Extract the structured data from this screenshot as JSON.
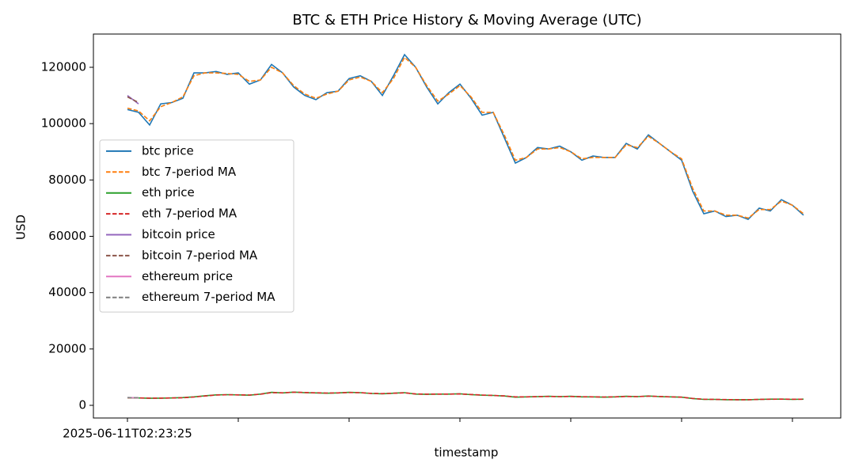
{
  "chart_data": {
    "type": "line",
    "title": "BTC & ETH Price History & Moving Average (UTC)",
    "x_label": "timestamp",
    "y_label": "USD",
    "categories": [
      "2025-06-11T02:23:25",
      null,
      null,
      null,
      null,
      null,
      null,
      null,
      null,
      null,
      null,
      null,
      null,
      null,
      null,
      null,
      null,
      null,
      null,
      null,
      null,
      null,
      null,
      null,
      null,
      null,
      null,
      null,
      null,
      null,
      null,
      null,
      null,
      null,
      null,
      null,
      null,
      null,
      null,
      null,
      null,
      null,
      null,
      null,
      null,
      null,
      null,
      null,
      null,
      null,
      null,
      null,
      null,
      null,
      null,
      null,
      null,
      null,
      null,
      null,
      null,
      null
    ],
    "xlim": [
      -3.07,
      64.36
    ],
    "xticks": [
      0,
      10,
      20,
      30,
      40,
      50,
      60
    ],
    "ylim": [
      -4500,
      131800
    ],
    "yticks": [
      0,
      20000,
      40000,
      60000,
      80000,
      100000,
      120000
    ],
    "legend": "center left",
    "series": [
      {
        "name": "btc price",
        "color": "#1f77b4",
        "linestyle": "solid",
        "values": [
          105000,
          104000,
          99500,
          107000,
          107500,
          109000,
          118000,
          118000,
          118500,
          117500,
          118000,
          114000,
          115500,
          121000,
          118000,
          113000,
          110000,
          108500,
          111000,
          111500,
          116000,
          117000,
          115000,
          110000,
          117000,
          124500,
          120000,
          113000,
          107000,
          111000,
          114000,
          109000,
          103000,
          104000,
          95000,
          86000,
          88000,
          91500,
          91000,
          92000,
          90000,
          87000,
          88500,
          88000,
          88000,
          93000,
          91000,
          96000,
          93000,
          90000,
          87000,
          76000,
          68000,
          69000,
          67000,
          67500,
          66000,
          70000,
          69000,
          73000,
          71000,
          67500
        ]
      },
      {
        "name": "btc 7-period MA",
        "color": "#ff7f0e",
        "linestyle": "dashed",
        "values": [
          105500,
          104500,
          101000,
          106000,
          107500,
          109500,
          117000,
          118000,
          118000,
          117800,
          117500,
          115000,
          115500,
          120000,
          118000,
          113500,
          110500,
          109000,
          110500,
          111500,
          115500,
          116500,
          115000,
          111000,
          116000,
          123500,
          120000,
          113500,
          108000,
          110500,
          113500,
          109500,
          104000,
          104000,
          96000,
          87000,
          88000,
          91000,
          91000,
          91500,
          90000,
          87500,
          88000,
          88000,
          88000,
          92500,
          91500,
          95500,
          93000,
          90000,
          87500,
          77000,
          69000,
          69000,
          67500,
          67500,
          66500,
          69500,
          69500,
          72500,
          71000,
          68000
        ]
      },
      {
        "name": "eth price",
        "color": "#2ca02c",
        "linestyle": "solid",
        "values": [
          2700,
          2600,
          2500,
          2550,
          2600,
          2750,
          3000,
          3400,
          3700,
          3800,
          3700,
          3600,
          4000,
          4600,
          4400,
          4700,
          4500,
          4400,
          4300,
          4400,
          4600,
          4500,
          4200,
          4100,
          4300,
          4500,
          4000,
          3900,
          4000,
          4000,
          4100,
          3800,
          3600,
          3500,
          3300,
          2900,
          3000,
          3100,
          3200,
          3100,
          3200,
          3000,
          3000,
          2900,
          3000,
          3200,
          3100,
          3300,
          3100,
          3000,
          2900,
          2400,
          2100,
          2100,
          2000,
          2000,
          2000,
          2100,
          2200,
          2200,
          2100,
          2200
        ]
      },
      {
        "name": "eth 7-period MA",
        "color": "#d62728",
        "linestyle": "dashed",
        "values": [
          2700,
          2650,
          2550,
          2550,
          2600,
          2700,
          2950,
          3300,
          3650,
          3750,
          3700,
          3650,
          3950,
          4500,
          4450,
          4650,
          4550,
          4450,
          4350,
          4400,
          4550,
          4500,
          4250,
          4150,
          4300,
          4450,
          4050,
          3950,
          4000,
          4000,
          4050,
          3850,
          3650,
          3500,
          3350,
          3000,
          3000,
          3100,
          3150,
          3100,
          3150,
          3050,
          3000,
          2950,
          3000,
          3150,
          3100,
          3250,
          3150,
          3000,
          2900,
          2450,
          2150,
          2100,
          2050,
          2000,
          2000,
          2100,
          2150,
          2200,
          2150,
          2150
        ]
      },
      {
        "name": "bitcoin price",
        "color": "#9467bd",
        "linestyle": "solid",
        "values": [
          110000,
          107000,
          null,
          null,
          null,
          null,
          null,
          null,
          null,
          null,
          null,
          null,
          null,
          null,
          null,
          null,
          null,
          null,
          null,
          null,
          null,
          null,
          null,
          null,
          null,
          null,
          null,
          null,
          null,
          null,
          null,
          null,
          null,
          null,
          null,
          null,
          null,
          null,
          null,
          null,
          null,
          null,
          null,
          null,
          null,
          null,
          null,
          null,
          null,
          null,
          null,
          null,
          null,
          null,
          null,
          null,
          null,
          null,
          null,
          null,
          null,
          null
        ]
      },
      {
        "name": "bitcoin 7-period MA",
        "color": "#8c564b",
        "linestyle": "dashed",
        "values": [
          109500,
          107500,
          null,
          null,
          null,
          null,
          null,
          null,
          null,
          null,
          null,
          null,
          null,
          null,
          null,
          null,
          null,
          null,
          null,
          null,
          null,
          null,
          null,
          null,
          null,
          null,
          null,
          null,
          null,
          null,
          null,
          null,
          null,
          null,
          null,
          null,
          null,
          null,
          null,
          null,
          null,
          null,
          null,
          null,
          null,
          null,
          null,
          null,
          null,
          null,
          null,
          null,
          null,
          null,
          null,
          null,
          null,
          null,
          null,
          null,
          null,
          null
        ]
      },
      {
        "name": "ethereum price",
        "color": "#e377c2",
        "linestyle": "solid",
        "values": [
          2750,
          2650,
          null,
          null,
          null,
          null,
          null,
          null,
          null,
          null,
          null,
          null,
          null,
          null,
          null,
          null,
          null,
          null,
          null,
          null,
          null,
          null,
          null,
          null,
          null,
          null,
          null,
          null,
          null,
          null,
          null,
          null,
          null,
          null,
          null,
          null,
          null,
          null,
          null,
          null,
          null,
          null,
          null,
          null,
          null,
          null,
          null,
          null,
          null,
          null,
          null,
          null,
          null,
          null,
          null,
          null,
          null,
          null,
          null,
          null,
          null,
          null
        ]
      },
      {
        "name": "ethereum 7-period MA",
        "color": "#7f7f7f",
        "linestyle": "dashed",
        "values": [
          2750,
          2700,
          null,
          null,
          null,
          null,
          null,
          null,
          null,
          null,
          null,
          null,
          null,
          null,
          null,
          null,
          null,
          null,
          null,
          null,
          null,
          null,
          null,
          null,
          null,
          null,
          null,
          null,
          null,
          null,
          null,
          null,
          null,
          null,
          null,
          null,
          null,
          null,
          null,
          null,
          null,
          null,
          null,
          null,
          null,
          null,
          null,
          null,
          null,
          null,
          null,
          null,
          null,
          null,
          null,
          null,
          null,
          null,
          null,
          null,
          null,
          null
        ]
      }
    ]
  }
}
